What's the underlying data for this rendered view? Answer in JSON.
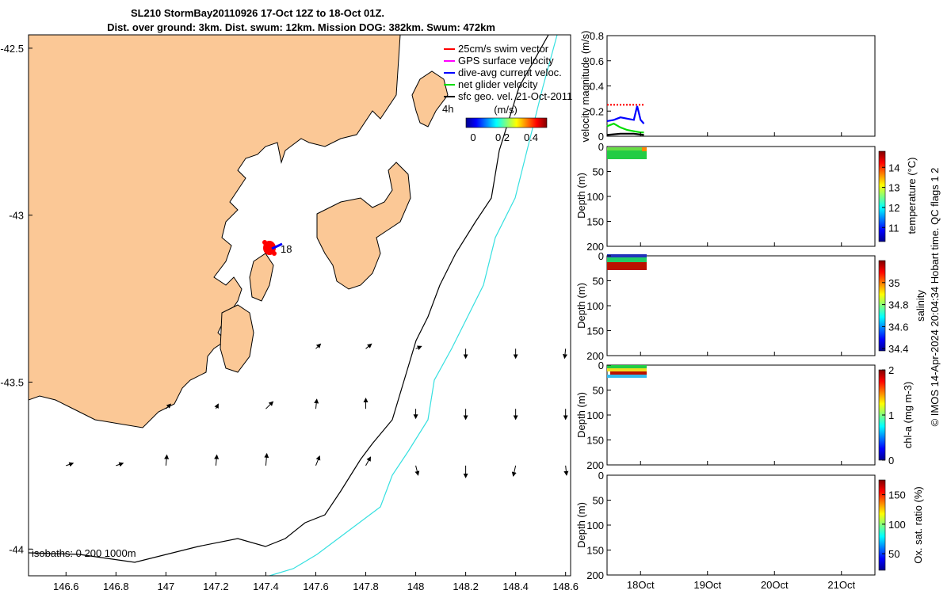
{
  "title": {
    "line1": "SL210 StormBay20110926 17-Oct 12Z to 18-Oct 01Z.",
    "line2": "Dist. over ground: 3km. Dist. swum: 12km. Mission DOG: 382km. Swum: 472km"
  },
  "map": {
    "x_ticks": [
      "146.6",
      "146.8",
      "147",
      "147.2",
      "147.4",
      "147.6",
      "147.8",
      "148",
      "148.2",
      "148.4",
      "148.6"
    ],
    "y_ticks": [
      "-42.5",
      "-43",
      "-43.5",
      "-44"
    ],
    "glider_label": "18",
    "legend": [
      {
        "label": "25cm/s swim vector",
        "color": "#ff0000"
      },
      {
        "label": "GPS surface velocity",
        "color": "#ff00ff"
      },
      {
        "label": "dive-avg current veloc.",
        "color": "#0000ff"
      },
      {
        "label": "net glider velocity",
        "color": "#00dd00"
      },
      {
        "label": "sfc geo. vel. 21-Oct-2011",
        "color": "#000000"
      }
    ],
    "legend_extra": "4h",
    "colorbar_title": "(m/s)",
    "colorbar_ticks": [
      "0",
      "0.2",
      "0.4"
    ],
    "isobaths_label": "isobaths: 0   200  1000m",
    "colors": {
      "land": "#fbc896",
      "isobath_200": "#000000",
      "isobath_1000": "#36e0e0",
      "track": "#ff0000"
    }
  },
  "panels": {
    "velocity": {
      "ylabel": "velocity magnitude (m/s)",
      "y_ticks": [
        "0",
        "0.2",
        "0.4",
        "0.6",
        "0.8"
      ]
    },
    "temperature": {
      "ylabel": "Depth (m)",
      "clabel": "temperature (°C)",
      "c_ticks": [
        "14",
        "13",
        "12",
        "11"
      ],
      "y_ticks": [
        "0",
        "50",
        "100",
        "150",
        "200"
      ]
    },
    "salinity": {
      "ylabel": "Depth (m)",
      "clabel": "salinity",
      "c_ticks": [
        "35",
        "34.8",
        "34.6",
        "34.4"
      ],
      "y_ticks": [
        "0",
        "50",
        "100",
        "150",
        "200"
      ]
    },
    "chla": {
      "ylabel": "Depth (m)",
      "clabel": "chl-a (mg m-3)",
      "c_ticks": [
        "2",
        "1",
        "0"
      ],
      "y_ticks": [
        "0",
        "50",
        "100",
        "150",
        "200"
      ]
    },
    "oxygen": {
      "ylabel": "Depth (m)",
      "clabel": "Ox. sat. ratio (%)",
      "c_ticks": [
        "150",
        "100",
        "50"
      ],
      "y_ticks": [
        "0",
        "50",
        "100",
        "150",
        "200"
      ]
    },
    "x_ticks": [
      "18Oct",
      "19Oct",
      "20Oct",
      "21Oct"
    ]
  },
  "footer": "© IMOS 14-Apr-2024 20:04:34 Hobart time. QC flags 1  2",
  "chart_data": {
    "type": "scatter",
    "xlabel": "",
    "ylabel": "",
    "xlim": [
      146.45,
      148.62
    ],
    "ylim": [
      -44.08,
      -42.46
    ],
    "glider_position": {
      "lon": 147.44,
      "lat": -43.03
    },
    "currents": [
      {
        "lon": 146.6,
        "lat": -43.75,
        "u": 0.15,
        "v": 0.05
      },
      {
        "lon": 146.8,
        "lat": -43.75,
        "u": 0.15,
        "v": 0.05
      },
      {
        "lon": 147.0,
        "lat": -43.75,
        "u": 0.02,
        "v": 0.22
      },
      {
        "lon": 147.2,
        "lat": -43.75,
        "u": 0.02,
        "v": 0.22
      },
      {
        "lon": 147.4,
        "lat": -43.75,
        "u": 0.02,
        "v": 0.25
      },
      {
        "lon": 147.6,
        "lat": -43.75,
        "u": 0.08,
        "v": 0.2
      },
      {
        "lon": 147.8,
        "lat": -43.75,
        "u": 0.1,
        "v": 0.18
      },
      {
        "lon": 148.0,
        "lat": -43.75,
        "u": 0.05,
        "v": -0.2
      },
      {
        "lon": 148.2,
        "lat": -43.75,
        "u": 0.0,
        "v": -0.25
      },
      {
        "lon": 148.4,
        "lat": -43.75,
        "u": -0.05,
        "v": -0.22
      },
      {
        "lon": 148.6,
        "lat": -43.75,
        "u": 0.02,
        "v": -0.2
      },
      {
        "lon": 147.0,
        "lat": -43.58,
        "u": 0.1,
        "v": 0.1
      },
      {
        "lon": 147.2,
        "lat": -43.58,
        "u": 0.05,
        "v": 0.1
      },
      {
        "lon": 147.4,
        "lat": -43.58,
        "u": 0.15,
        "v": 0.15
      },
      {
        "lon": 147.6,
        "lat": -43.58,
        "u": 0.02,
        "v": 0.2
      },
      {
        "lon": 147.8,
        "lat": -43.58,
        "u": 0.0,
        "v": 0.22
      },
      {
        "lon": 148.0,
        "lat": -43.58,
        "u": 0.0,
        "v": -0.2
      },
      {
        "lon": 148.2,
        "lat": -43.58,
        "u": 0.0,
        "v": -0.22
      },
      {
        "lon": 148.4,
        "lat": -43.58,
        "u": 0.0,
        "v": -0.22
      },
      {
        "lon": 148.6,
        "lat": -43.58,
        "u": 0.0,
        "v": -0.22
      },
      {
        "lon": 147.6,
        "lat": -43.4,
        "u": 0.1,
        "v": 0.1
      },
      {
        "lon": 147.8,
        "lat": -43.4,
        "u": 0.12,
        "v": 0.1
      },
      {
        "lon": 148.0,
        "lat": -43.4,
        "u": 0.12,
        "v": 0.05
      },
      {
        "lon": 148.2,
        "lat": -43.4,
        "u": 0.0,
        "v": -0.2
      },
      {
        "lon": 148.4,
        "lat": -43.4,
        "u": 0.0,
        "v": -0.2
      },
      {
        "lon": 148.6,
        "lat": -43.4,
        "u": -0.02,
        "v": -0.2
      }
    ],
    "velocity_series": [
      {
        "name": "25cm/s swim vector",
        "color": "#ff0000",
        "x": [
          17.5,
          17.9,
          18.05
        ],
        "y": [
          0.25,
          0.25,
          0.25
        ]
      },
      {
        "name": "dive-avg current veloc.",
        "color": "#0000ff",
        "x": [
          17.5,
          17.6,
          17.7,
          17.8,
          17.9,
          17.95,
          18.0,
          18.05
        ],
        "y": [
          0.12,
          0.13,
          0.15,
          0.14,
          0.13,
          0.24,
          0.13,
          0.1
        ]
      },
      {
        "name": "net glider velocity",
        "color": "#00dd00",
        "x": [
          17.5,
          17.6,
          17.7,
          17.8,
          17.9,
          18.0,
          18.05
        ],
        "y": [
          0.08,
          0.1,
          0.07,
          0.05,
          0.04,
          0.03,
          0.03
        ]
      },
      {
        "name": "sfc geo. vel. 21-Oct-2011",
        "color": "#000000",
        "x": [
          17.5,
          17.7,
          17.9,
          18.05
        ],
        "y": [
          0.01,
          0.02,
          0.02,
          0.01
        ]
      }
    ]
  }
}
